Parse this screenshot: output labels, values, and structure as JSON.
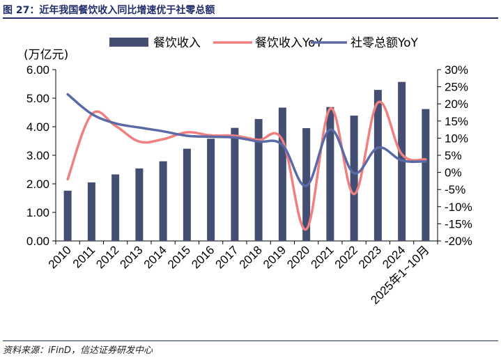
{
  "figure": {
    "title": "图 27：近年我国餐饮收入同比增速优于社零总额",
    "source": "资料来源：iFinD，信达证券研发中心"
  },
  "colors": {
    "bars": "#434e72",
    "yoy": "#f08080",
    "retail": "#5b6aa6"
  },
  "chart_data": {
    "type": "bar+line",
    "unit_left": "(万亿元)",
    "categories": [
      "2010",
      "2011",
      "2012",
      "2013",
      "2014",
      "2015",
      "2016",
      "2017",
      "2018",
      "2019",
      "2020",
      "2021",
      "2022",
      "2023",
      "2024",
      "2025年1~10月"
    ],
    "series": [
      {
        "name": "餐饮收入",
        "type": "bar",
        "axis": "left",
        "values": [
          1.76,
          2.05,
          2.33,
          2.54,
          2.79,
          3.23,
          3.58,
          3.96,
          4.27,
          4.67,
          3.95,
          4.69,
          4.39,
          5.29,
          5.57,
          4.62
        ]
      },
      {
        "name": "餐饮收入YoY",
        "type": "line",
        "axis": "right",
        "values": [
          -2.0,
          16.9,
          13.6,
          9.0,
          9.7,
          11.7,
          10.8,
          10.7,
          9.5,
          9.4,
          -16.6,
          18.6,
          -6.3,
          20.4,
          5.3,
          3.8
        ]
      },
      {
        "name": "社零总额YoY",
        "type": "line",
        "axis": "right",
        "values": [
          22.8,
          17.1,
          14.3,
          13.1,
          12.0,
          10.7,
          10.4,
          10.2,
          9.0,
          8.0,
          -3.9,
          12.5,
          -0.2,
          7.2,
          3.5,
          3.2
        ]
      }
    ],
    "left_axis": {
      "ylim": [
        0,
        6
      ],
      "ticks": [
        "0.00",
        "1.00",
        "2.00",
        "3.00",
        "4.00",
        "5.00",
        "6.00"
      ]
    },
    "right_axis": {
      "ylim": [
        -20,
        30
      ],
      "ticks": [
        "-20%",
        "-15%",
        "-10%",
        "-5%",
        "0%",
        "5%",
        "10%",
        "15%",
        "20%",
        "25%",
        "30%"
      ]
    },
    "legend": [
      "餐饮收入",
      "餐饮收入YoY",
      "社零总额YoY"
    ]
  }
}
